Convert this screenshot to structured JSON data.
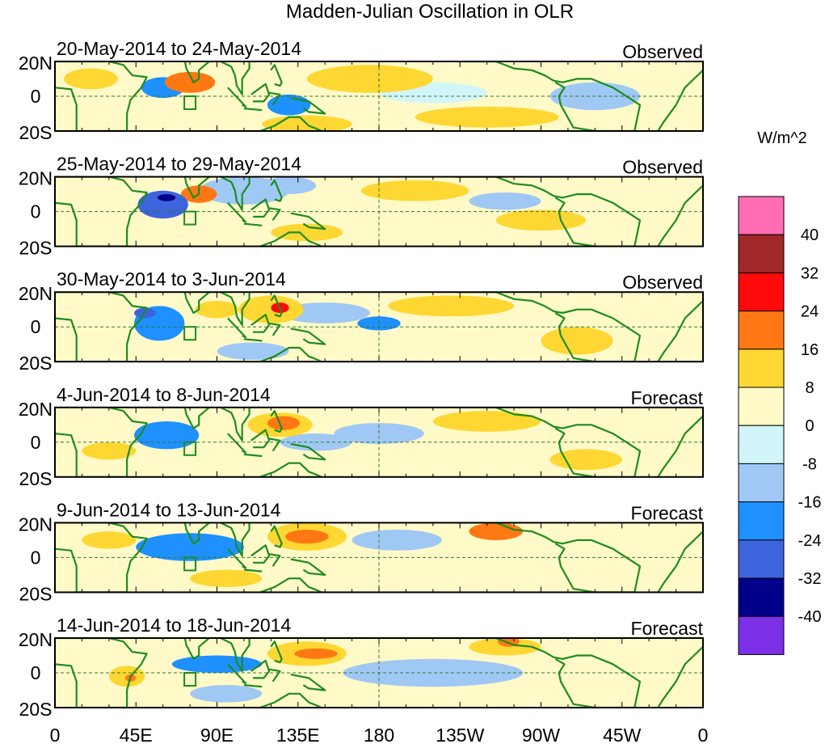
{
  "chart_data": {
    "type": "heatmap",
    "title": "Madden-Julian Oscillation in OLR",
    "units": "W/m^2",
    "x_ticks": [
      "0",
      "45E",
      "90E",
      "135E",
      "180",
      "135W",
      "90W",
      "45W",
      "0"
    ],
    "y_ticks": [
      "20N",
      "0",
      "20S"
    ],
    "xlim_deg_east": [
      0,
      360
    ],
    "ylim_deg_lat": [
      -20,
      20
    ],
    "colorbar": {
      "levels": [
        -40,
        -32,
        -24,
        -16,
        -8,
        0,
        8,
        16,
        24,
        32,
        40
      ],
      "labels": [
        "40",
        "32",
        "24",
        "16",
        "8",
        "0",
        "-8",
        "-16",
        "-24",
        "-32",
        "-40"
      ],
      "colors": [
        "#7b2fe6",
        "#00008b",
        "#3c64dc",
        "#1e90ff",
        "#a0c8f5",
        "#d2f5fa",
        "#fffac8",
        "#ffd732",
        "#ff7814",
        "#ff0a0a",
        "#a02828",
        "#ff6eb4"
      ]
    },
    "panels": [
      {
        "period": "20-May-2014 to 24-May-2014",
        "type": "Observed",
        "anomalies": [
          {
            "lon": 75,
            "lat": 8,
            "rx": 14,
            "ry": 6,
            "v": 22
          },
          {
            "lon": 60,
            "lat": 5,
            "rx": 12,
            "ry": 6,
            "v": -18
          },
          {
            "lon": 130,
            "lat": -5,
            "rx": 12,
            "ry": 6,
            "v": -20
          },
          {
            "lon": 175,
            "lat": 10,
            "rx": 35,
            "ry": 8,
            "v": 12
          },
          {
            "lon": 140,
            "lat": -16,
            "rx": 25,
            "ry": 5,
            "v": 12
          },
          {
            "lon": 240,
            "lat": -12,
            "rx": 40,
            "ry": 6,
            "v": 11
          },
          {
            "lon": 300,
            "lat": 0,
            "rx": 25,
            "ry": 8,
            "v": -10
          },
          {
            "lon": 20,
            "lat": 10,
            "rx": 15,
            "ry": 6,
            "v": 8
          },
          {
            "lon": 210,
            "lat": 2,
            "rx": 30,
            "ry": 6,
            "v": -7
          }
        ]
      },
      {
        "period": "25-May-2014 to 29-May-2014",
        "type": "Observed",
        "anomalies": [
          {
            "lon": 60,
            "lat": 4,
            "rx": 14,
            "ry": 8,
            "v": -26
          },
          {
            "lon": 62,
            "lat": 8,
            "rx": 5,
            "ry": 2,
            "v": -34
          },
          {
            "lon": 80,
            "lat": 10,
            "rx": 10,
            "ry": 5,
            "v": 18
          },
          {
            "lon": 105,
            "lat": 12,
            "rx": 25,
            "ry": 8,
            "v": -12
          },
          {
            "lon": 130,
            "lat": 15,
            "rx": 15,
            "ry": 5,
            "v": -10
          },
          {
            "lon": 200,
            "lat": 12,
            "rx": 30,
            "ry": 6,
            "v": 12
          },
          {
            "lon": 250,
            "lat": 6,
            "rx": 20,
            "ry": 5,
            "v": -10
          },
          {
            "lon": 270,
            "lat": -5,
            "rx": 25,
            "ry": 6,
            "v": 11
          },
          {
            "lon": 140,
            "lat": -12,
            "rx": 20,
            "ry": 5,
            "v": 9
          }
        ]
      },
      {
        "period": "30-May-2014 to 3-Jun-2014",
        "type": "Observed",
        "anomalies": [
          {
            "lon": 58,
            "lat": 2,
            "rx": 14,
            "ry": 10,
            "v": -20
          },
          {
            "lon": 50,
            "lat": 8,
            "rx": 6,
            "ry": 3,
            "v": -30
          },
          {
            "lon": 120,
            "lat": 10,
            "rx": 18,
            "ry": 8,
            "v": 14
          },
          {
            "lon": 125,
            "lat": 11,
            "rx": 5,
            "ry": 3,
            "v": 24
          },
          {
            "lon": 90,
            "lat": 10,
            "rx": 12,
            "ry": 5,
            "v": 10
          },
          {
            "lon": 150,
            "lat": 8,
            "rx": 25,
            "ry": 6,
            "v": -12
          },
          {
            "lon": 180,
            "lat": 2,
            "rx": 12,
            "ry": 4,
            "v": -18
          },
          {
            "lon": 220,
            "lat": 12,
            "rx": 35,
            "ry": 6,
            "v": 10
          },
          {
            "lon": 290,
            "lat": -8,
            "rx": 20,
            "ry": 8,
            "v": 10
          },
          {
            "lon": 110,
            "lat": -14,
            "rx": 20,
            "ry": 5,
            "v": -10
          }
        ]
      },
      {
        "period": "4-Jun-2014 to 8-Jun-2014",
        "type": "Forecast",
        "anomalies": [
          {
            "lon": 62,
            "lat": 4,
            "rx": 18,
            "ry": 8,
            "v": -22
          },
          {
            "lon": 125,
            "lat": 10,
            "rx": 18,
            "ry": 7,
            "v": 14
          },
          {
            "lon": 127,
            "lat": 11,
            "rx": 9,
            "ry": 4,
            "v": 22
          },
          {
            "lon": 145,
            "lat": 0,
            "rx": 20,
            "ry": 5,
            "v": -10
          },
          {
            "lon": 240,
            "lat": 12,
            "rx": 30,
            "ry": 6,
            "v": 10
          },
          {
            "lon": 295,
            "lat": -10,
            "rx": 20,
            "ry": 6,
            "v": 10
          },
          {
            "lon": 30,
            "lat": -5,
            "rx": 15,
            "ry": 5,
            "v": 10
          },
          {
            "lon": 180,
            "lat": 5,
            "rx": 25,
            "ry": 6,
            "v": -9
          }
        ]
      },
      {
        "period": "9-Jun-2014 to 13-Jun-2014",
        "type": "Forecast",
        "anomalies": [
          {
            "lon": 75,
            "lat": 6,
            "rx": 30,
            "ry": 8,
            "v": -18
          },
          {
            "lon": 70,
            "lat": 2,
            "rx": 12,
            "ry": 3,
            "v": -24
          },
          {
            "lon": 140,
            "lat": 12,
            "rx": 22,
            "ry": 8,
            "v": 14
          },
          {
            "lon": 140,
            "lat": 12,
            "rx": 12,
            "ry": 4,
            "v": 22
          },
          {
            "lon": 245,
            "lat": 15,
            "rx": 15,
            "ry": 5,
            "v": 16
          },
          {
            "lon": 250,
            "lat": 17,
            "rx": 5,
            "ry": 3,
            "v": 22
          },
          {
            "lon": 190,
            "lat": 10,
            "rx": 25,
            "ry": 6,
            "v": -10
          },
          {
            "lon": 95,
            "lat": -12,
            "rx": 20,
            "ry": 5,
            "v": 10
          },
          {
            "lon": 30,
            "lat": 10,
            "rx": 15,
            "ry": 5,
            "v": 10
          }
        ]
      },
      {
        "period": "14-Jun-2014 to 18-Jun-2014",
        "type": "Forecast",
        "anomalies": [
          {
            "lon": 90,
            "lat": 5,
            "rx": 25,
            "ry": 5,
            "v": -18
          },
          {
            "lon": 140,
            "lat": 11,
            "rx": 22,
            "ry": 7,
            "v": 14
          },
          {
            "lon": 145,
            "lat": 11,
            "rx": 12,
            "ry": 3,
            "v": 20
          },
          {
            "lon": 250,
            "lat": 15,
            "rx": 20,
            "ry": 5,
            "v": 14
          },
          {
            "lon": 252,
            "lat": 18,
            "rx": 6,
            "ry": 3,
            "v": 22
          },
          {
            "lon": 40,
            "lat": -2,
            "rx": 10,
            "ry": 6,
            "v": 12
          },
          {
            "lon": 42,
            "lat": -3,
            "rx": 3,
            "ry": 2,
            "v": 20
          },
          {
            "lon": 210,
            "lat": 0,
            "rx": 50,
            "ry": 8,
            "v": -9
          },
          {
            "lon": 95,
            "lat": -12,
            "rx": 20,
            "ry": 5,
            "v": -10
          }
        ]
      }
    ]
  }
}
